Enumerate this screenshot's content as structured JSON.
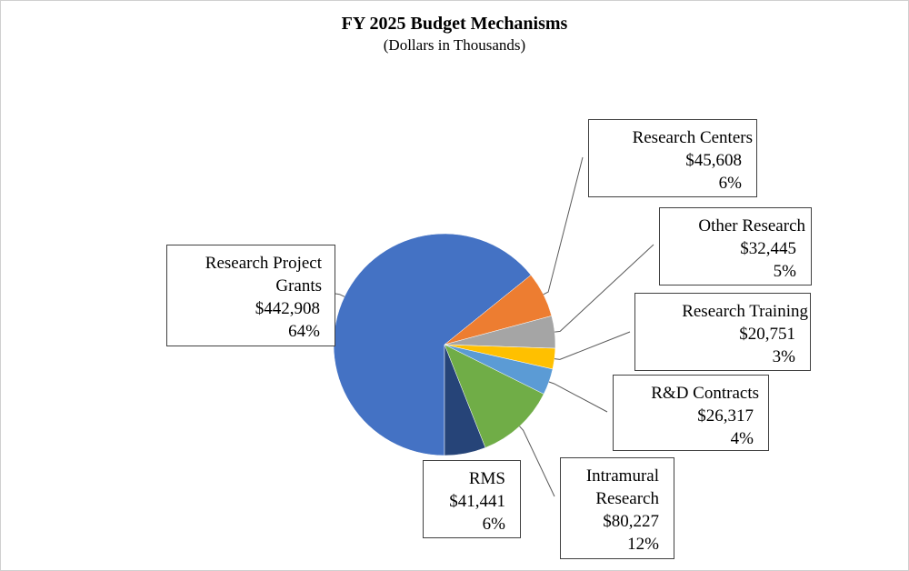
{
  "chart_data": {
    "type": "pie",
    "title": "FY 2025 Budget Mechanisms",
    "subtitle": "(Dollars in Thousands)",
    "categories": [
      "Research Project Grants",
      "Research Centers",
      "Other Research",
      "Research Training",
      "R&D Contracts",
      "Intramural Research",
      "RMS"
    ],
    "values": [
      442908,
      45608,
      32445,
      20751,
      26317,
      80227,
      41441
    ],
    "value_labels": [
      "$442,908",
      "$45,608",
      "$32,445",
      "$20,751",
      "$26,317",
      "$80,227",
      "$41,441"
    ],
    "percents": [
      64,
      6,
      5,
      3,
      4,
      12,
      6
    ],
    "percent_labels": [
      "64%",
      "6%",
      "5%",
      "3%",
      "4%",
      "12%",
      "6%"
    ],
    "colors": [
      "#4472c4",
      "#ed7d31",
      "#a5a5a5",
      "#ffc000",
      "#5b9bd5",
      "#70ad47",
      "#264478"
    ]
  }
}
